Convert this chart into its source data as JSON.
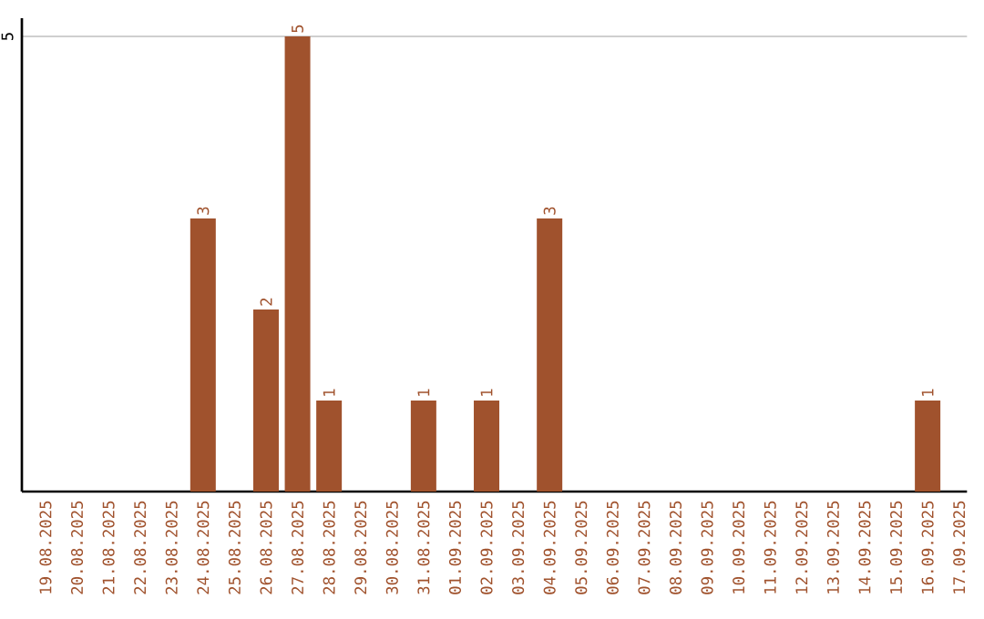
{
  "chart_data": {
    "type": "bar",
    "categories": [
      "19.08.2025",
      "20.08.2025",
      "21.08.2025",
      "22.08.2025",
      "23.08.2025",
      "24.08.2025",
      "25.08.2025",
      "26.08.2025",
      "27.08.2025",
      "28.08.2025",
      "29.08.2025",
      "30.08.2025",
      "31.08.2025",
      "01.09.2025",
      "02.09.2025",
      "03.09.2025",
      "04.09.2025",
      "05.09.2025",
      "06.09.2025",
      "07.09.2025",
      "08.09.2025",
      "09.09.2025",
      "10.09.2025",
      "11.09.2025",
      "12.09.2025",
      "13.09.2025",
      "14.09.2025",
      "15.09.2025",
      "16.09.2025",
      "17.09.2025"
    ],
    "values": [
      0,
      0,
      0,
      0,
      0,
      3,
      0,
      2,
      5,
      1,
      0,
      0,
      1,
      0,
      1,
      0,
      3,
      0,
      0,
      0,
      0,
      0,
      0,
      0,
      0,
      0,
      0,
      0,
      1,
      0
    ],
    "value_labels": [
      null,
      null,
      null,
      null,
      null,
      "3",
      null,
      "2",
      "5",
      "1",
      null,
      null,
      "1",
      null,
      "1",
      null,
      "3",
      null,
      null,
      null,
      null,
      null,
      null,
      null,
      null,
      null,
      null,
      null,
      "1",
      null
    ],
    "color": "#a0522d",
    "ylim": [
      0,
      5.2
    ],
    "yticks": [
      5
    ],
    "grid": "y"
  }
}
